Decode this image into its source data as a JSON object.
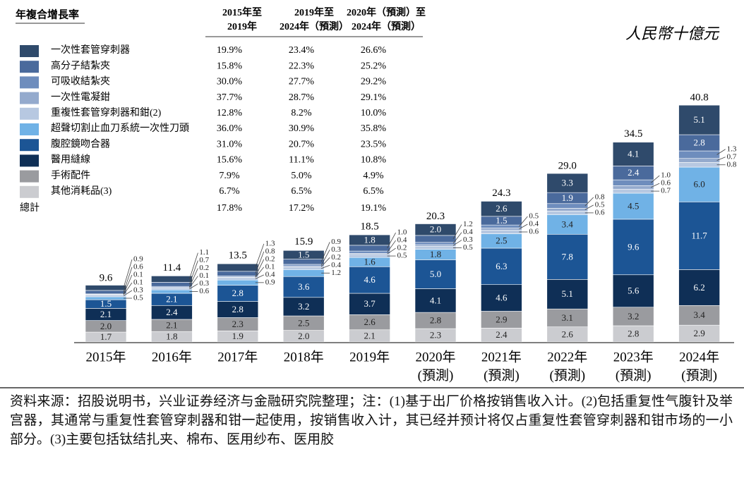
{
  "chart_data": {
    "type": "stacked-bar",
    "unit": "人民幣十億元",
    "table_title": "年複合增長率",
    "columns": [
      [
        "2015年至",
        "2019年"
      ],
      [
        "2019年至",
        "2024年（預測）"
      ],
      [
        "2020年（預測）至",
        "2024年（預測）"
      ]
    ],
    "categories": [
      "2015年",
      "2016年",
      "2017年",
      "2018年",
      "2019年",
      "2020年",
      "2021年",
      "2022年",
      "2023年",
      "2024年"
    ],
    "category_notes": [
      null,
      null,
      null,
      null,
      null,
      "(預測)",
      "(預測)",
      "(預測)",
      "(預測)",
      "(預測)"
    ],
    "series": [
      {
        "name": "一次性套管穿刺器",
        "color": "#2f4a6b",
        "growth": [
          "19.9%",
          "23.4%",
          "26.6%"
        ],
        "values": [
          0.9,
          1.1,
          1.3,
          1.5,
          1.8,
          2.0,
          2.6,
          3.3,
          4.1,
          5.1
        ],
        "value_labels": [
          "0.9",
          "1.1",
          "1.3",
          "1.5",
          "1.8",
          "2.0",
          "2.6",
          "3.3",
          "4.1",
          "5.1"
        ]
      },
      {
        "name": "高分子結紮夾",
        "color": "#4a6a9c",
        "growth": [
          "15.8%",
          "22.3%",
          "25.2%"
        ],
        "values": [
          0.6,
          0.7,
          0.8,
          0.9,
          1.0,
          1.2,
          1.5,
          1.9,
          2.4,
          2.8
        ],
        "value_labels": [
          "0.6",
          "0.7",
          "0.8",
          "0.9",
          "1.0",
          "1.2",
          "1.5",
          "1.9",
          "2.4",
          "2.8"
        ]
      },
      {
        "name": "可吸收結紮夾",
        "color": "#6e8dbd",
        "growth": [
          "30.0%",
          "27.7%",
          "29.2%"
        ],
        "values": [
          0.1,
          0.2,
          0.2,
          0.3,
          0.4,
          0.4,
          0.5,
          0.8,
          1.0,
          1.3
        ],
        "value_labels": [
          "0.1",
          "0.2",
          "0.2",
          "0.3",
          "0.4",
          "0.4",
          "0.5",
          "0.8",
          "1.0",
          "1.3"
        ]
      },
      {
        "name": "一次性電凝鉗",
        "color": "#94aacd",
        "growth": [
          "37.7%",
          "28.7%",
          "29.1%"
        ],
        "values": [
          0.1,
          0.1,
          0.1,
          0.2,
          0.2,
          0.3,
          0.4,
          0.5,
          0.6,
          0.7
        ],
        "value_labels": [
          "0.1",
          "0.1",
          "0.1",
          "0.2",
          "0.2",
          "0.3",
          "0.4",
          "0.5",
          "0.6",
          "0.7"
        ]
      },
      {
        "name": "重複性套管穿刺器和鉗(2)",
        "color": "#b7c8e1",
        "growth": [
          "12.8%",
          "8.2%",
          "10.0%"
        ],
        "values": [
          0.3,
          0.3,
          0.4,
          0.4,
          0.5,
          0.5,
          0.6,
          0.6,
          0.7,
          0.8
        ],
        "value_labels": [
          "0.3",
          "0.3",
          "0.4",
          "0.4",
          "0.5",
          "0.5",
          "0.6",
          "0.6",
          "0.7",
          "0.8"
        ]
      },
      {
        "name": "超聲切割止血刀系統一次性刀頭",
        "color": "#70b2e6",
        "growth": [
          "36.0%",
          "30.9%",
          "35.8%"
        ],
        "values": [
          0.5,
          0.6,
          0.9,
          1.2,
          1.6,
          1.8,
          2.5,
          3.4,
          4.5,
          6.0
        ],
        "value_labels": [
          "0.5",
          "0.6",
          "0.9",
          "1.2",
          "1.6",
          "1.8",
          "2.5",
          "3.4",
          "4.5",
          "6.0"
        ]
      },
      {
        "name": "腹腔鏡吻合器",
        "color": "#1c5595",
        "growth": [
          "31.0%",
          "20.7%",
          "23.5%"
        ],
        "values": [
          1.5,
          2.1,
          2.8,
          3.6,
          4.6,
          5.0,
          6.3,
          7.8,
          9.6,
          11.7
        ],
        "value_labels": [
          "1.5",
          "2.1",
          "2.8",
          "3.6",
          "4.6",
          "5.0",
          "6.3",
          "7.8",
          "9.6",
          "11.7"
        ]
      },
      {
        "name": "醫用縫線",
        "color": "#0f2f56",
        "growth": [
          "15.6%",
          "11.1%",
          "10.8%"
        ],
        "values": [
          2.1,
          2.4,
          2.8,
          3.2,
          3.7,
          4.1,
          4.6,
          5.1,
          5.6,
          6.2
        ],
        "value_labels": [
          "2.1",
          "2.4",
          "2.8",
          "3.2",
          "3.7",
          "4.1",
          "4.6",
          "5.1",
          "5.6",
          "6.2"
        ]
      },
      {
        "name": "手術配件",
        "color": "#9a9b9f",
        "growth": [
          "7.9%",
          "5.0%",
          "4.9%"
        ],
        "values": [
          2.0,
          2.1,
          2.3,
          2.5,
          2.6,
          2.8,
          2.9,
          3.1,
          3.2,
          3.4
        ],
        "value_labels": [
          "2.0",
          "2.1",
          "2.3",
          "2.5",
          "2.6",
          "2.8",
          "2.9",
          "3.1",
          "3.2",
          "3.4"
        ]
      },
      {
        "name": "其他消耗品(3)",
        "color": "#cbccd0",
        "growth": [
          "6.7%",
          "6.5%",
          "6.5%"
        ],
        "values": [
          1.7,
          1.8,
          1.9,
          2.0,
          2.1,
          2.3,
          2.4,
          2.6,
          2.8,
          2.9
        ],
        "value_labels": [
          "1.7",
          "1.8",
          "1.9",
          "2.0",
          "2.1",
          "2.3",
          "2.4",
          "2.6",
          "2.8",
          "2.9"
        ]
      }
    ],
    "total_row": {
      "name": "總計",
      "growth": [
        "17.8%",
        "17.2%",
        "19.1%"
      ]
    },
    "totals": {
      "values": [
        9.6,
        11.4,
        13.5,
        15.9,
        18.5,
        20.3,
        24.3,
        29.0,
        34.5,
        40.8
      ],
      "value_labels": [
        "9.6",
        "11.4",
        "13.5",
        "15.9",
        "18.5",
        "20.3",
        "24.3",
        "29.0",
        "34.5",
        "40.8"
      ]
    }
  },
  "footer": "资料来源：招股说明书，兴业证券经济与金融研究院整理；注：(1)基于出厂价格按销售收入计。(2)包括重复性气腹针及举宫器，其通常与重复性套管穿刺器和钳一起使用，按销售收入计，其已经并预计将仅占重复性套管穿刺器和钳市场的一小部分。(3)主要包括钛结扎夹、棉布、医用纱布、医用胶"
}
